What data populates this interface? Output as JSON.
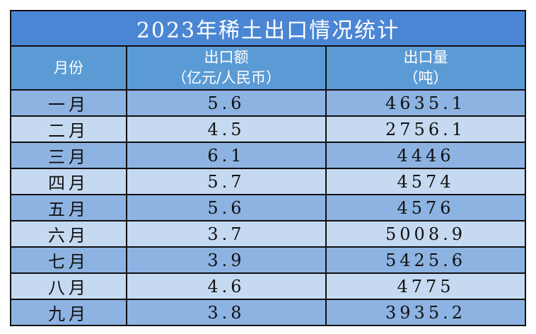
{
  "title": "2023年稀土出口情况统计",
  "header": [
    [
      "月份"
    ],
    [
      "出口额",
      "（亿元/人民币）"
    ],
    [
      "出口量",
      "（吨）"
    ]
  ],
  "rows": [
    [
      "一月",
      5.6,
      4635.1
    ],
    [
      "二月",
      4.5,
      2756.1
    ],
    [
      "三月",
      6.1,
      4446
    ],
    [
      "四月",
      5.7,
      4574
    ],
    [
      "五月",
      5.6,
      4576
    ],
    [
      "六月",
      3.7,
      5008.9
    ],
    [
      "七月",
      3.9,
      5425.6
    ],
    [
      "八月",
      4.6,
      4775
    ],
    [
      "九月",
      3.8,
      3935.2
    ]
  ]
}
